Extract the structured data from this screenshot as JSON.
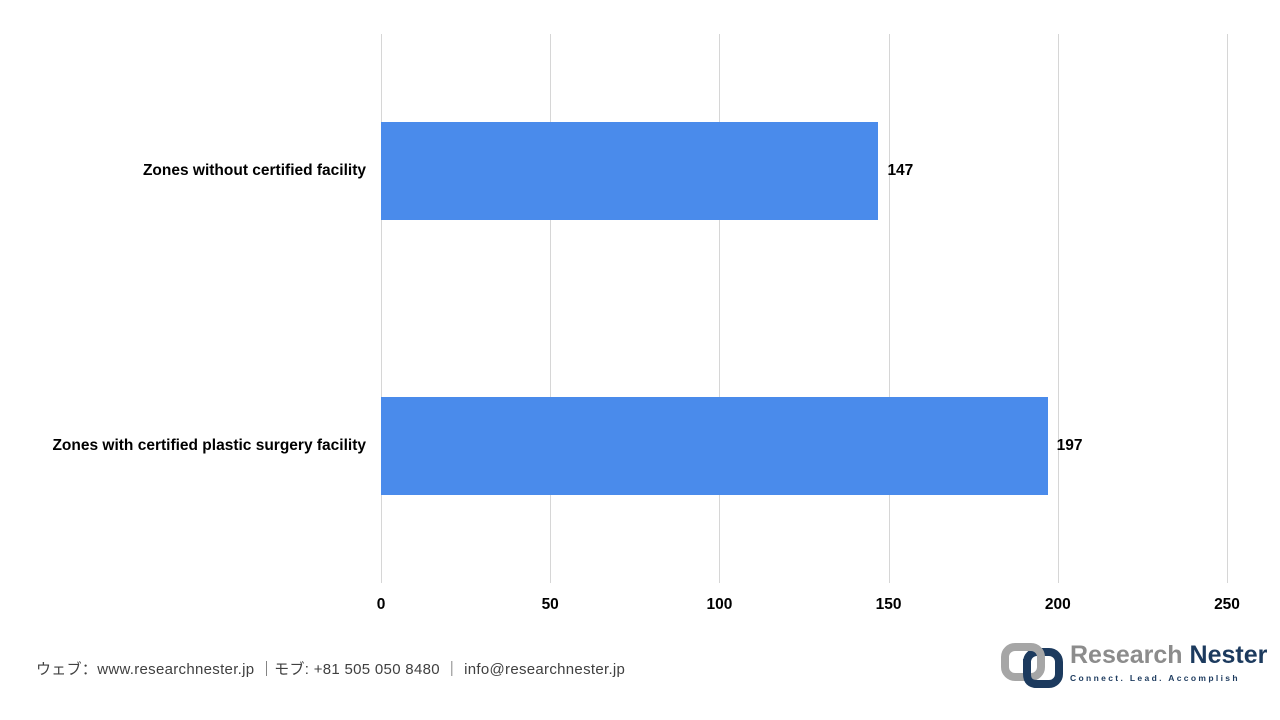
{
  "page": {
    "background": "#FFFFFF"
  },
  "chart_data": {
    "type": "bar",
    "orientation": "horizontal",
    "title": "",
    "categories": [
      "Zones without certified facility",
      "Zones with certified plastic surgery facility"
    ],
    "values": [
      147,
      197
    ],
    "value_labels": [
      "147",
      "197"
    ],
    "xlim": [
      0,
      250
    ],
    "x_ticks": [
      "0",
      "50",
      "100",
      "150",
      "200",
      "250"
    ],
    "grid": "vertical gridlines only, no axis lines",
    "legend": "none",
    "bar_color": "#4A8BEB",
    "gridline_color": "#D6D6D6",
    "label_color": "#000000"
  },
  "footer": {
    "contact": "ウェブ：www.researchnester.jp ｜モブ: +81 505 050 8480 ｜ info@researchnester.jp"
  },
  "logo": {
    "name": "Research Nester",
    "word1": "Research",
    "word2": "Nester",
    "tagline": "Connect. Lead. Accomplish",
    "word1_color": "#8C8C8C",
    "word2_color": "#1C3A5E",
    "icon_gray": "#A6A6A6",
    "icon_navy": "#1C3A5E"
  }
}
